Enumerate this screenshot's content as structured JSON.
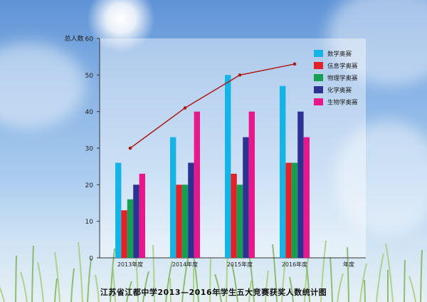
{
  "chart_data": {
    "type": "bar",
    "title": "江苏省江都中学2013—2016年学生五大竞赛获奖人数统计图",
    "ylabel": "总人数",
    "xlabel": "年度",
    "ylim": [
      0,
      60
    ],
    "yticks": [
      0,
      10,
      20,
      30,
      40,
      50,
      60
    ],
    "grid": false,
    "legend_position": "top-right",
    "categories": [
      "2013年度",
      "2014年度",
      "2015年度",
      "2016年度"
    ],
    "series": [
      {
        "name": "数学奥赛",
        "color": "#14b4e6",
        "values": [
          26,
          33,
          50,
          47
        ]
      },
      {
        "name": "信息学奥赛",
        "color": "#e32227",
        "values": [
          13,
          20,
          23,
          26
        ]
      },
      {
        "name": "物理学奥赛",
        "color": "#14a050",
        "values": [
          16,
          20,
          20,
          26
        ]
      },
      {
        "name": "化学奥赛",
        "color": "#2e3192",
        "values": [
          20,
          26,
          33,
          40
        ]
      },
      {
        "name": "生物学奥赛",
        "color": "#e8188c",
        "values": [
          23,
          40,
          40,
          33
        ]
      }
    ],
    "line": {
      "type": "line",
      "color": "#b01a1a",
      "values": [
        30,
        41,
        50,
        53
      ]
    }
  }
}
